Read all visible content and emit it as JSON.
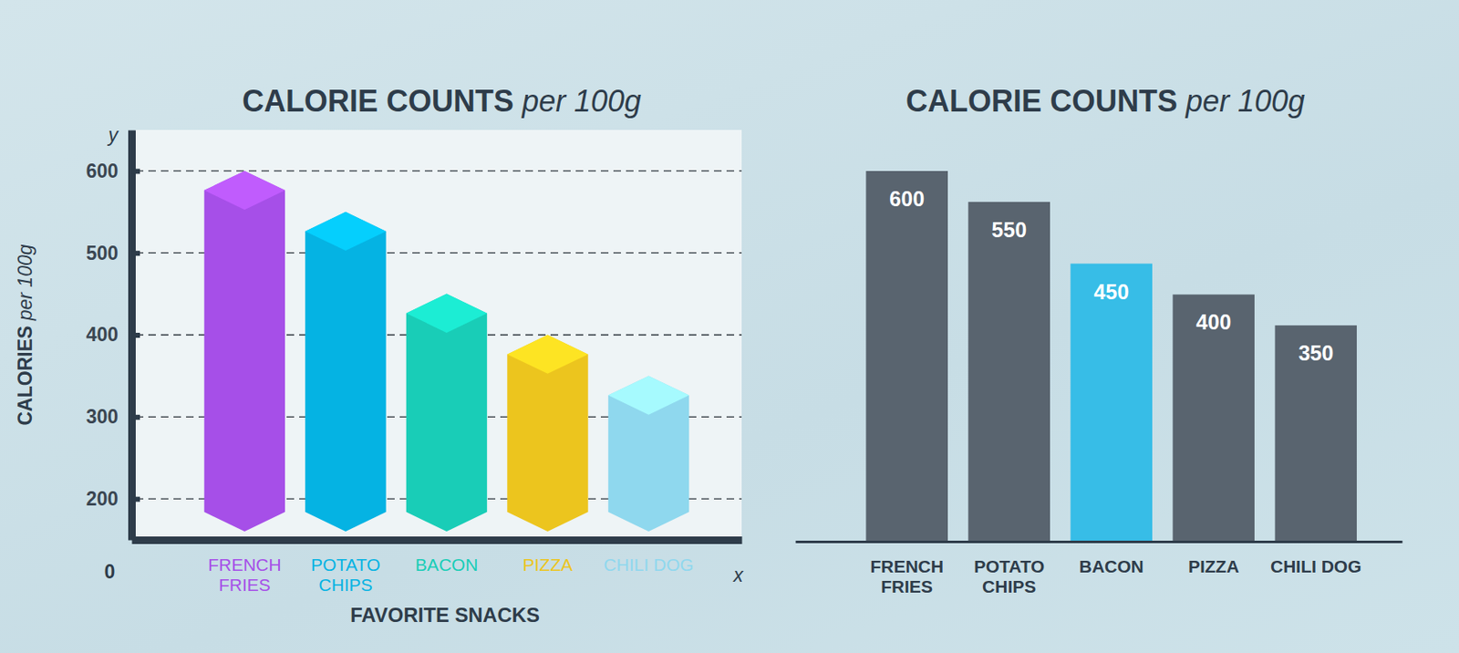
{
  "chart_data": [
    {
      "type": "bar",
      "title": "CALORIE COUNTS per 100g",
      "x_label": "FAVORITE SNACKS",
      "y_label": "CALORIES per 100g",
      "categories": [
        "FRENCH FRIES",
        "POTATO CHIPS",
        "BACON",
        "PIZZA",
        "CHILI DOG"
      ],
      "values": [
        600,
        550,
        450,
        400,
        350
      ],
      "colors": [
        "#a64fe8",
        "#05b3e3",
        "#19cdb7",
        "#ecc51e",
        "#8fd8ee"
      ],
      "ylim": [
        150,
        650
      ],
      "yticks": [
        200,
        300,
        400,
        500,
        600
      ],
      "grid": true,
      "annotations": [
        "y",
        "x",
        "0"
      ]
    },
    {
      "type": "bar",
      "title": "CALORIE COUNTS per 100g",
      "categories": [
        "FRENCH FRIES",
        "POTATO CHIPS",
        "BACON",
        "PIZZA",
        "CHILI DOG"
      ],
      "values": [
        600,
        550,
        450,
        400,
        350
      ],
      "colors": [
        "#59646f",
        "#59646f",
        "#37bde7",
        "#59646f",
        "#59646f"
      ],
      "ylim": [
        0,
        600
      ],
      "data_labels": true,
      "tick_labels": "x"
    }
  ]
}
